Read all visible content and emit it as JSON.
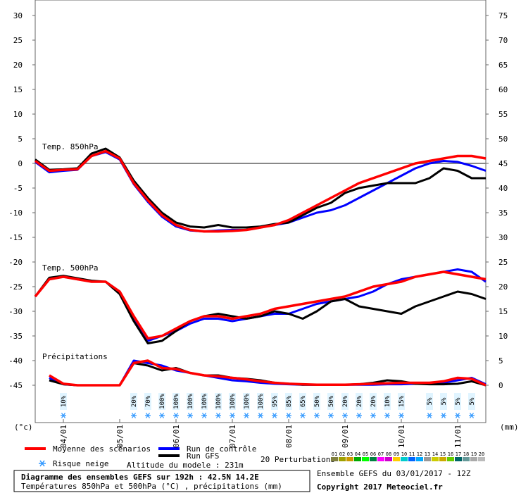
{
  "chart_data": {
    "type": "line",
    "title": "Diagramme des ensembles GEFS sur 192h : 42.5N 14.2E",
    "subtitle": "Températures 850hPa et 500hPa (°C) , précipitations (mm)",
    "run_label": "Ensemble GEFS du 03/01/2017 - 12Z",
    "copyright": "Copyright 2017 Meteociel.fr",
    "y_unit": "(°c)",
    "y2_unit": "(mm)",
    "panels": [
      "Temp. 850hPa",
      "Temp. 500hPa",
      "Précipitations"
    ],
    "altitude": "Altitude du modele : 231m",
    "xlim": [
      0,
      192
    ],
    "xticks": [
      {
        "value": 12,
        "label": "04/01"
      },
      {
        "value": 36,
        "label": "05/01"
      },
      {
        "value": 60,
        "label": "06/01"
      },
      {
        "value": 84,
        "label": "07/01"
      },
      {
        "value": 108,
        "label": "08/01"
      },
      {
        "value": 132,
        "label": "09/01"
      },
      {
        "value": 156,
        "label": "10/01"
      },
      {
        "value": 180,
        "label": "11/01"
      }
    ],
    "x": [
      0,
      6,
      12,
      18,
      24,
      30,
      36,
      42,
      48,
      54,
      60,
      66,
      72,
      78,
      84,
      90,
      96,
      102,
      108,
      114,
      120,
      126,
      132,
      138,
      144,
      150,
      156,
      162,
      168,
      174,
      180,
      186,
      192
    ],
    "ylim": [
      -52.57,
      33.14
    ],
    "yticks": [
      -45,
      -40,
      -35,
      -30,
      -25,
      -20,
      -15,
      -10,
      -5,
      0,
      5,
      10,
      15,
      20,
      25,
      30
    ],
    "y2lim": [
      -7.57,
      78.14
    ],
    "y2ticks": [
      0,
      5,
      10,
      15,
      20,
      25,
      30,
      35,
      40,
      45,
      50,
      55,
      60,
      65,
      70,
      75
    ],
    "zero_line": true,
    "series": [
      {
        "name": "Run de contrôle",
        "color": "#0000ff",
        "t850": [
          0.3,
          -1.8,
          -1.5,
          -1.3,
          1.5,
          2.3,
          0.8,
          -4.2,
          -7.8,
          -10.8,
          -12.8,
          -13.6,
          -13.8,
          -13.6,
          -13.5,
          -13.5,
          -13,
          -12.5,
          -12,
          -11,
          -10,
          -9.5,
          -8.5,
          -7,
          -5.5,
          -4,
          -2.5,
          -1,
          0,
          0.5,
          0.3,
          -0.5,
          -1.5
        ],
        "t500": [
          -27,
          -23.5,
          -23,
          -23.5,
          -24,
          -24,
          -26,
          -31.5,
          -36,
          -35,
          -34,
          -32.5,
          -31.5,
          -31.5,
          -32,
          -31.5,
          -31,
          -30.5,
          -30.5,
          -29.5,
          -28.5,
          -28,
          -27.5,
          -27,
          -26,
          -24.5,
          -23.5,
          -23,
          -22.5,
          -22,
          -21.5,
          -22,
          -24
        ],
        "precip": [
          null,
          1.5,
          0.2,
          0,
          0,
          0,
          0,
          5,
          4.5,
          4,
          3,
          2.5,
          2,
          1.5,
          1,
          0.8,
          0.5,
          0.3,
          0.2,
          0.1,
          0.1,
          0.1,
          0.1,
          0.1,
          0.1,
          0.2,
          0.2,
          0.3,
          0.4,
          0.5,
          1,
          1.5,
          0.2
        ]
      },
      {
        "name": "Run GFS",
        "color": "#000000",
        "t850": [
          0.8,
          -1.3,
          -1.2,
          -1,
          2,
          3,
          1.2,
          -3.5,
          -7,
          -10,
          -12,
          -12.8,
          -13,
          -12.5,
          -13,
          -13,
          -12.8,
          -12.3,
          -12,
          -10.5,
          -9,
          -8,
          -6,
          -5,
          -4.5,
          -4,
          -4,
          -4,
          -3,
          -1,
          -1.5,
          -3,
          -3
        ],
        "t500": [
          -27,
          -23.2,
          -22.8,
          -23.3,
          -23.8,
          -24,
          -26.5,
          -32,
          -36.5,
          -36,
          -34,
          -32,
          -31,
          -30.5,
          -31,
          -31.5,
          -31,
          -30,
          -30.5,
          -31.5,
          -30,
          -28,
          -27.5,
          -29,
          -29.5,
          -30,
          -30.5,
          -29,
          -28,
          -27,
          -26,
          -26.5,
          -27.5
        ],
        "precip": [
          null,
          1,
          0.2,
          0,
          0,
          0,
          0,
          4.5,
          4,
          3,
          3.5,
          2.5,
          2,
          2,
          1.5,
          1.3,
          1,
          0.5,
          0.3,
          0.1,
          0.1,
          0.1,
          0.1,
          0.2,
          0.5,
          1,
          0.8,
          0.3,
          0.2,
          0.2,
          0.3,
          0.8,
          0
        ]
      },
      {
        "name": "Moyenne des scénarios",
        "color": "#ff0000",
        "t850": [
          0.5,
          -1.5,
          -1.3,
          -1.2,
          1.5,
          2.5,
          1,
          -4,
          -7.5,
          -10.5,
          -12.5,
          -13.5,
          -13.8,
          -13.8,
          -13.7,
          -13.5,
          -13,
          -12.5,
          -11.5,
          -10,
          -8.5,
          -7,
          -5.5,
          -4,
          -3,
          -2,
          -1,
          0,
          0.5,
          1,
          1.5,
          1.5,
          1
        ],
        "t500": [
          -27,
          -23.5,
          -23,
          -23.5,
          -24,
          -24,
          -26,
          -31,
          -35.5,
          -35,
          -33.5,
          -32,
          -31,
          -31,
          -31.5,
          -31,
          -30.5,
          -29.5,
          -29,
          -28.5,
          -28,
          -27.5,
          -27,
          -26,
          -25,
          -24.5,
          -24,
          -23,
          -22.5,
          -22,
          -22.5,
          -23,
          -23.5
        ],
        "precip": [
          null,
          2,
          0.3,
          0,
          0,
          0,
          0,
          4.5,
          5,
          3.5,
          3.3,
          2.5,
          2,
          1.8,
          1.5,
          1.2,
          0.8,
          0.5,
          0.3,
          0.2,
          0.1,
          0.1,
          0.1,
          0.2,
          0.3,
          0.4,
          0.5,
          0.5,
          0.5,
          0.8,
          1.5,
          1.3,
          0
        ]
      }
    ],
    "snow_risk": {
      "name": "Risque neige",
      "x": [
        12,
        42,
        48,
        54,
        60,
        66,
        72,
        78,
        84,
        90,
        96,
        102,
        108,
        114,
        120,
        126,
        132,
        138,
        144,
        150,
        156,
        168,
        174,
        180,
        186
      ],
      "labels": [
        "10%",
        "20%",
        "70%",
        "100%",
        "100%",
        "100%",
        "100%",
        "100%",
        "100%",
        "100%",
        "100%",
        "95%",
        "85%",
        "65%",
        "50%",
        "50%",
        "20%",
        "20%",
        "20%",
        "10%",
        "15%",
        "5%",
        "5%",
        "5%",
        "5%"
      ]
    },
    "perturbations": {
      "label": "20 Perturbations",
      "codes": [
        "01",
        "02",
        "03",
        "04",
        "05",
        "06",
        "07",
        "08",
        "09",
        "10",
        "11",
        "12",
        "13",
        "14",
        "15",
        "16",
        "17",
        "18",
        "19",
        "20"
      ],
      "colors": [
        "#808040",
        "#a0a000",
        "#cc9900",
        "#00aa00",
        "#00ff00",
        "#008040",
        "#ff00ff",
        "#cc00cc",
        "#ffcc00",
        "#00cccc",
        "#0066ff",
        "#00aaff",
        "#999999",
        "#cccc00",
        "#ccaa00",
        "#66cc00",
        "#006666",
        "#669999",
        "#aaaaaa",
        "#bbbbbb"
      ]
    }
  }
}
